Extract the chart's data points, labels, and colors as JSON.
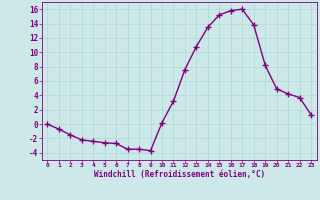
{
  "x": [
    0,
    1,
    2,
    3,
    4,
    5,
    6,
    7,
    8,
    9,
    10,
    11,
    12,
    13,
    14,
    15,
    16,
    17,
    18,
    19,
    20,
    21,
    22,
    23
  ],
  "y": [
    0,
    -0.7,
    -1.5,
    -2.2,
    -2.4,
    -2.6,
    -2.7,
    -3.5,
    -3.5,
    -3.7,
    0.2,
    3.2,
    7.6,
    10.8,
    13.5,
    15.2,
    15.8,
    16.0,
    13.8,
    8.2,
    4.9,
    4.2,
    3.7,
    1.3
  ],
  "line_color": "#800080",
  "marker": "+",
  "markersize": 4,
  "bg_color": "#cce8e8",
  "grid_color": "#b0d8d8",
  "xlabel": "Windchill (Refroidissement éolien,°C)",
  "xlabel_color": "#800080",
  "tick_color": "#800080",
  "ylim": [
    -5,
    17
  ],
  "xlim": [
    -0.5,
    23.5
  ],
  "yticks": [
    -4,
    -2,
    0,
    2,
    4,
    6,
    8,
    10,
    12,
    14,
    16
  ],
  "xticks": [
    0,
    1,
    2,
    3,
    4,
    5,
    6,
    7,
    8,
    9,
    10,
    11,
    12,
    13,
    14,
    15,
    16,
    17,
    18,
    19,
    20,
    21,
    22,
    23
  ],
  "xtick_labels": [
    "0",
    "1",
    "2",
    "3",
    "4",
    "5",
    "6",
    "7",
    "8",
    "9",
    "10",
    "11",
    "12",
    "13",
    "14",
    "15",
    "16",
    "17",
    "18",
    "19",
    "20",
    "21",
    "22",
    "23"
  ],
  "linewidth": 1.0
}
